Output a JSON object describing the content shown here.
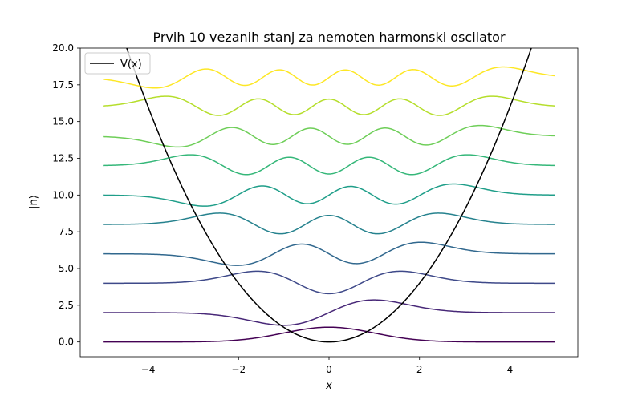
{
  "chart_data": {
    "type": "line",
    "title": "Prvih 10 vezanih stanj za nemoten harmonski oscilator",
    "xlabel": "x",
    "ylabel": "|n⟩",
    "xlim": [
      -5.5,
      5.5
    ],
    "ylim": [
      -1,
      20
    ],
    "x_ticks": [
      -4,
      -2,
      0,
      2,
      4
    ],
    "x_tick_labels": [
      "−4",
      "−2",
      "0",
      "2",
      "4"
    ],
    "y_ticks": [
      0,
      2.5,
      5,
      7.5,
      10,
      12.5,
      15,
      17.5,
      20
    ],
    "y_tick_labels": [
      "0.0",
      "2.5",
      "5.0",
      "7.5",
      "10.0",
      "12.5",
      "15.0",
      "17.5",
      "20.0"
    ],
    "grid": false,
    "legend": {
      "placement": "top-left",
      "entries": [
        "V(x)"
      ]
    },
    "potential": {
      "name": "V(x)",
      "formula": "V(x) = x^2",
      "color": "#000000",
      "x_range": [
        -5,
        5
      ]
    },
    "wavefunctions": {
      "x_range": [
        -5,
        5
      ],
      "colormap": "viridis",
      "amplitude": 1.34,
      "states": [
        {
          "n": 0,
          "offset": 0,
          "color": "#440154"
        },
        {
          "n": 1,
          "offset": 2,
          "color": "#482878"
        },
        {
          "n": 2,
          "offset": 4,
          "color": "#3e4989"
        },
        {
          "n": 3,
          "offset": 6,
          "color": "#31688e"
        },
        {
          "n": 4,
          "offset": 8,
          "color": "#26828e"
        },
        {
          "n": 5,
          "offset": 10,
          "color": "#1f9e89"
        },
        {
          "n": 6,
          "offset": 12,
          "color": "#35b779"
        },
        {
          "n": 7,
          "offset": 14,
          "color": "#6ece58"
        },
        {
          "n": 8,
          "offset": 16,
          "color": "#b5de2b"
        },
        {
          "n": 9,
          "offset": 18,
          "color": "#fde725"
        }
      ]
    }
  }
}
